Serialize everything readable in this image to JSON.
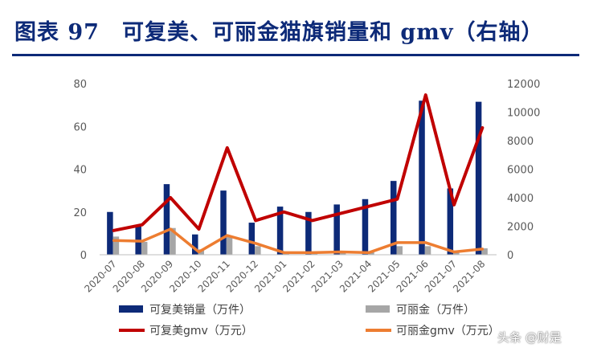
{
  "header": {
    "title": "图表 97　可复美、可丽金猫旗销量和 gmv（右轴）"
  },
  "watermark": "头条 @财是",
  "chart_data": {
    "type": "bar+line",
    "categories": [
      "2020-07",
      "2020-08",
      "2020-09",
      "2020-10",
      "2020-11",
      "2020-12",
      "2021-01",
      "2021-02",
      "2021-03",
      "2021-04",
      "2021-05",
      "2021-06",
      "2021-07",
      "2021-08"
    ],
    "left_axis": {
      "ylim": [
        0,
        80
      ],
      "ticks": [
        0,
        20,
        40,
        60,
        80
      ]
    },
    "right_axis": {
      "ylim": [
        0,
        12000
      ],
      "ticks": [
        0,
        2000,
        4000,
        6000,
        8000,
        10000,
        12000
      ]
    },
    "series": [
      {
        "name": "可复美销量（万件）",
        "type": "bar",
        "axis": "left",
        "color": "#0d2a78",
        "values": [
          20,
          14,
          33,
          9.5,
          30,
          15,
          22.5,
          20,
          23.5,
          26,
          34.5,
          72,
          31,
          71.5
        ]
      },
      {
        "name": "可丽金（万件）",
        "type": "bar",
        "axis": "left",
        "color": "#a6a6a6",
        "values": [
          8.5,
          6,
          12.5,
          2.5,
          8.5,
          4,
          1,
          1,
          1.5,
          1.5,
          4,
          4,
          1.5,
          3
        ]
      },
      {
        "name": "可复美gmv（万元）",
        "type": "line",
        "axis": "right",
        "color": "#c00000",
        "values": [
          1700,
          2100,
          4000,
          1800,
          7500,
          2400,
          3000,
          2400,
          2900,
          3400,
          3900,
          11200,
          3500,
          8900
        ]
      },
      {
        "name": "可丽金gmv（万元）",
        "type": "line",
        "axis": "right",
        "color": "#ed7d31",
        "values": [
          1000,
          950,
          1800,
          200,
          1350,
          800,
          150,
          150,
          200,
          150,
          850,
          850,
          200,
          400
        ]
      }
    ],
    "grid": false,
    "legend": "bottom"
  }
}
